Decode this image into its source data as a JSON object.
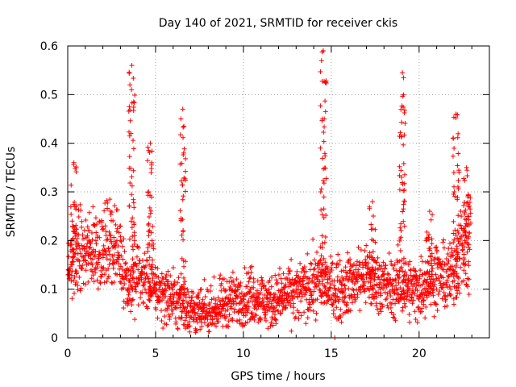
{
  "chart_data": {
    "type": "scatter",
    "title": "Day 140 of 2021, SRMTID for receiver ckis",
    "xlabel": "GPS time / hours",
    "ylabel": "SRMTID / TECUs",
    "xlim": [
      0,
      24
    ],
    "ylim": [
      0,
      0.6
    ],
    "x_ticks": [
      0,
      5,
      10,
      15,
      20
    ],
    "x_tick_labels": [
      "0",
      "5",
      "10",
      "15",
      "20"
    ],
    "y_ticks": [
      0,
      0.1,
      0.2,
      0.3,
      0.4,
      0.5,
      0.6
    ],
    "y_tick_labels": [
      "0",
      "0.1",
      "0.2",
      "0.3",
      "0.4",
      "0.5",
      "0.6"
    ],
    "grid": true,
    "marker": "+",
    "series": [
      {
        "name": "SRMTID",
        "color": "#ff0000",
        "trend": {
          "x": [
            0,
            0.5,
            1,
            1.5,
            2,
            2.5,
            3,
            3.5,
            4,
            4.5,
            5,
            5.5,
            6,
            6.5,
            7,
            7.5,
            8,
            8.5,
            9,
            9.5,
            10,
            10.5,
            11,
            11.5,
            12,
            12.5,
            13,
            13.5,
            14,
            14.5,
            15,
            15.5,
            16,
            16.5,
            17,
            17.5,
            18,
            18.5,
            19,
            19.5,
            20,
            20.5,
            21,
            21.5,
            22,
            22.5,
            23
          ],
          "y": [
            0.14,
            0.18,
            0.17,
            0.19,
            0.18,
            0.2,
            0.17,
            0.1,
            0.13,
            0.12,
            0.1,
            0.09,
            0.08,
            0.07,
            0.06,
            0.05,
            0.05,
            0.06,
            0.07,
            0.08,
            0.08,
            0.09,
            0.08,
            0.07,
            0.08,
            0.09,
            0.09,
            0.1,
            0.11,
            0.12,
            0.1,
            0.1,
            0.11,
            0.12,
            0.13,
            0.12,
            0.11,
            0.1,
            0.11,
            0.1,
            0.1,
            0.12,
            0.13,
            0.12,
            0.14,
            0.2,
            0.24
          ]
        },
        "spikes": [
          {
            "x": 0.35,
            "peak": 0.36
          },
          {
            "x": 3.65,
            "peak": 0.56
          },
          {
            "x": 4.7,
            "peak": 0.4
          },
          {
            "x": 6.55,
            "peak": 0.47
          },
          {
            "x": 14.55,
            "peak": 0.59
          },
          {
            "x": 17.35,
            "peak": 0.28
          },
          {
            "x": 19.05,
            "peak": 0.545
          },
          {
            "x": 20.6,
            "peak": 0.26
          },
          {
            "x": 22.1,
            "peak": 0.46
          },
          {
            "x": 22.7,
            "peak": 0.35
          }
        ],
        "x": [
          0.05,
          0.2,
          0.4,
          0.6,
          0.8,
          1.0,
          1.2,
          1.4,
          1.6,
          1.8,
          2.0,
          2.2,
          2.4,
          2.6,
          2.8,
          3.0,
          3.2,
          3.4,
          3.6,
          3.8,
          4.0,
          4.2,
          4.4,
          4.6,
          4.8,
          5.0,
          5.2,
          5.4,
          5.6,
          5.8,
          6.0,
          6.2,
          6.4,
          6.6,
          6.8,
          7.0,
          7.2,
          7.4,
          7.6,
          7.8,
          8.0,
          8.2,
          8.4,
          8.6,
          8.8,
          9.0,
          9.2,
          9.4,
          9.6,
          9.8,
          10.0,
          10.2,
          10.4,
          10.6,
          10.8,
          11.0,
          11.2,
          11.4,
          11.6,
          11.8,
          12.0,
          12.2,
          12.4,
          12.6,
          12.8,
          13.0,
          13.2,
          13.4,
          13.6,
          13.8,
          14.0,
          14.2,
          14.4,
          14.6,
          14.8,
          15.0,
          15.2,
          15.4,
          15.6,
          15.8,
          16.0,
          16.2,
          16.4,
          16.6,
          16.8,
          17.0,
          17.2,
          17.4,
          17.6,
          17.8,
          18.0,
          18.2,
          18.4,
          18.6,
          18.8,
          19.0,
          19.2,
          19.4,
          19.6,
          19.8,
          20.0,
          20.2,
          20.4,
          20.6,
          20.8,
          21.0,
          21.2,
          21.4,
          21.6,
          21.8,
          22.0,
          22.2,
          22.4,
          22.6,
          22.8
        ],
        "y": [
          0.13,
          0.2,
          0.27,
          0.16,
          0.19,
          0.17,
          0.22,
          0.15,
          0.2,
          0.24,
          0.18,
          0.17,
          0.21,
          0.16,
          0.2,
          0.23,
          0.12,
          0.08,
          0.42,
          0.2,
          0.14,
          0.12,
          0.1,
          0.3,
          0.2,
          0.11,
          0.1,
          0.09,
          0.12,
          0.08,
          0.07,
          0.09,
          0.1,
          0.38,
          0.1,
          0.07,
          0.06,
          0.05,
          0.06,
          0.04,
          0.05,
          0.06,
          0.07,
          0.06,
          0.08,
          0.07,
          0.1,
          0.08,
          0.07,
          0.09,
          0.08,
          0.06,
          0.1,
          0.09,
          0.08,
          0.07,
          0.06,
          0.08,
          0.07,
          0.09,
          0.08,
          0.07,
          0.06,
          0.09,
          0.08,
          0.1,
          0.09,
          0.11,
          0.1,
          0.14,
          0.13,
          0.12,
          0.3,
          0.45,
          0.12,
          0.08,
          0.0,
          0.1,
          0.11,
          0.1,
          0.12,
          0.1,
          0.14,
          0.15,
          0.12,
          0.13,
          0.14,
          0.2,
          0.11,
          0.1,
          0.12,
          0.09,
          0.11,
          0.1,
          0.13,
          0.33,
          0.12,
          0.1,
          0.09,
          0.1,
          0.08,
          0.13,
          0.2,
          0.18,
          0.12,
          0.1,
          0.15,
          0.11,
          0.14,
          0.1,
          0.3,
          0.22,
          0.25,
          0.2,
          0.27
        ]
      }
    ]
  }
}
